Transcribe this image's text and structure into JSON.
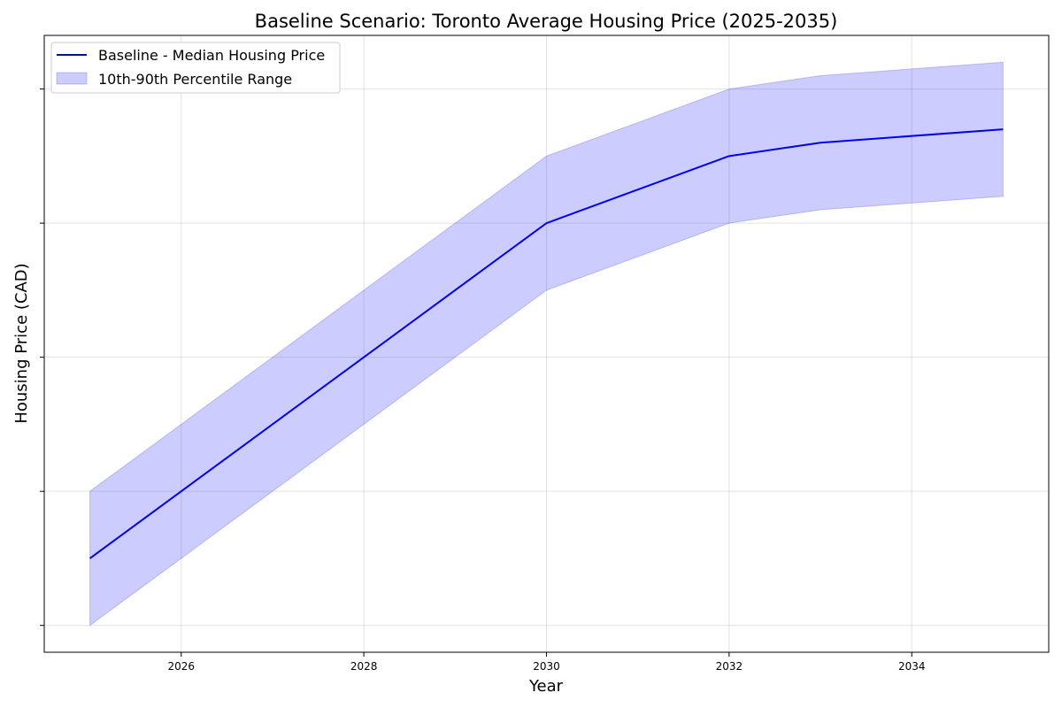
{
  "chart_data": {
    "type": "line",
    "title": "Baseline Scenario: Toronto Average Housing Price (2025-2035)",
    "xlabel": "Year",
    "ylabel": "Housing Price (CAD)",
    "xlim": [
      2024.5,
      2035.5
    ],
    "ylim": [
      -0.2,
      4.4
    ],
    "x_ticks": [
      2026,
      2028,
      2030,
      2032,
      2034
    ],
    "y_ticks": [
      0,
      1,
      2,
      3,
      4
    ],
    "y_tick_labels_visible": false,
    "grid": true,
    "legend_position": "top-left",
    "x": [
      2025,
      2030,
      2032,
      2033,
      2035
    ],
    "series": [
      {
        "name": "Baseline - Median Housing Price",
        "kind": "line",
        "color": "#0000ff",
        "values": [
          0.5,
          3.0,
          3.5,
          3.6,
          3.7
        ]
      },
      {
        "name": "10th-90th Percentile Range",
        "kind": "band",
        "color": "#0000ff",
        "opacity": 0.2,
        "lower": [
          0.0,
          2.5,
          3.0,
          3.1,
          3.2
        ],
        "upper": [
          1.0,
          3.5,
          4.0,
          4.1,
          4.2
        ]
      }
    ]
  }
}
